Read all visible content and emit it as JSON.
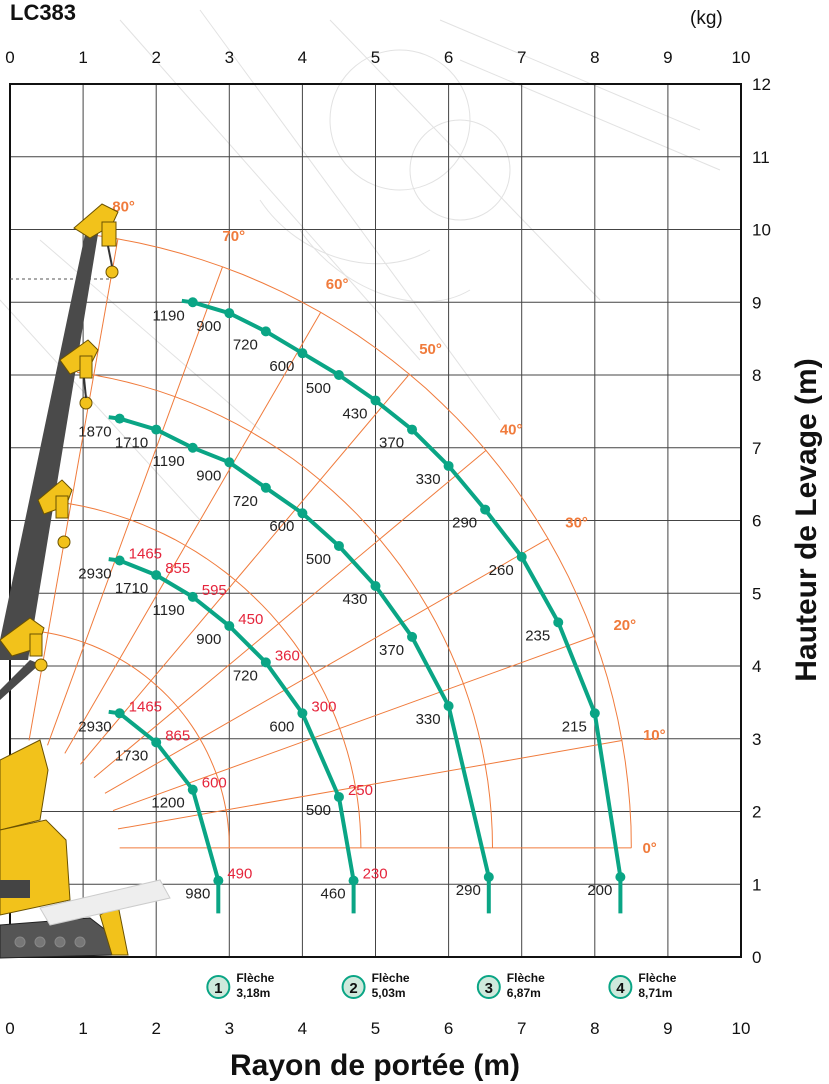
{
  "chart_data": {
    "type": "line",
    "title": "LC383",
    "top_unit": "(kg)",
    "xlabel": "Rayon de portée (m)",
    "ylabel": "Hauteur de Levage (m)",
    "xlim": [
      0,
      10
    ],
    "ylim": [
      0,
      12
    ],
    "x_ticks": [
      "0",
      "1",
      "2",
      "3",
      "4",
      "5",
      "6",
      "7",
      "8",
      "9",
      "10"
    ],
    "y_ticks": [
      "0",
      "1",
      "2",
      "3",
      "4",
      "5",
      "6",
      "7",
      "8",
      "9",
      "10",
      "11",
      "12"
    ],
    "top_ticks": [
      "0",
      "1",
      "2",
      "3",
      "4",
      "5",
      "6",
      "7",
      "8",
      "9",
      "10"
    ],
    "grid": true,
    "angle_labels": [
      "0°",
      "10°",
      "20°",
      "30°",
      "40°",
      "50°",
      "60°",
      "70°",
      "80°"
    ],
    "series": [
      {
        "name": "Flèche 3,18m",
        "boom_number": "1",
        "boom_word": "Flèche",
        "boom_length": "3,18m",
        "points": [
          {
            "x": 1.5,
            "y": 3.35,
            "label": "2930",
            "label2": "1465"
          },
          {
            "x": 2.0,
            "y": 2.95,
            "label": "1730",
            "label2": "865"
          },
          {
            "x": 2.5,
            "y": 2.3,
            "label": "1200",
            "label2": "600"
          },
          {
            "x": 2.85,
            "y": 1.05,
            "label": "980",
            "label2": "490"
          }
        ]
      },
      {
        "name": "Flèche 5,03m",
        "boom_number": "2",
        "boom_word": "Flèche",
        "boom_length": "5,03m",
        "points": [
          {
            "x": 1.5,
            "y": 5.45,
            "label": "2930",
            "label2": "1465"
          },
          {
            "x": 2.0,
            "y": 5.25,
            "label": "1710",
            "label2": "855"
          },
          {
            "x": 2.5,
            "y": 4.95,
            "label": "1190",
            "label2": "595"
          },
          {
            "x": 3.0,
            "y": 4.55,
            "label": "900",
            "label2": "450"
          },
          {
            "x": 3.5,
            "y": 4.05,
            "label": "720",
            "label2": "360"
          },
          {
            "x": 4.0,
            "y": 3.35,
            "label": "600",
            "label2": "300"
          },
          {
            "x": 4.5,
            "y": 2.2,
            "label": "500",
            "label2": "250"
          },
          {
            "x": 4.7,
            "y": 1.05,
            "label": "460",
            "label2": "230"
          }
        ]
      },
      {
        "name": "Flèche 6,87m",
        "boom_number": "3",
        "boom_word": "Flèche",
        "boom_length": "6,87m",
        "points": [
          {
            "x": 1.5,
            "y": 7.4,
            "label": "1870"
          },
          {
            "x": 2.0,
            "y": 7.25,
            "label": "1710"
          },
          {
            "x": 2.5,
            "y": 7.0,
            "label": "1190"
          },
          {
            "x": 3.0,
            "y": 6.8,
            "label": "900"
          },
          {
            "x": 3.5,
            "y": 6.45,
            "label": "720"
          },
          {
            "x": 4.0,
            "y": 6.1,
            "label": "600"
          },
          {
            "x": 4.5,
            "y": 5.65,
            "label": "500"
          },
          {
            "x": 5.0,
            "y": 5.1,
            "label": "430"
          },
          {
            "x": 5.5,
            "y": 4.4,
            "label": "370"
          },
          {
            "x": 6.0,
            "y": 3.45,
            "label": "330"
          },
          {
            "x": 6.55,
            "y": 1.1,
            "label": "290"
          }
        ]
      },
      {
        "name": "Flèche 8,71m",
        "boom_number": "4",
        "boom_word": "Flèche",
        "boom_length": "8,71m",
        "points": [
          {
            "x": 2.5,
            "y": 9.0,
            "label": "1190"
          },
          {
            "x": 3.0,
            "y": 8.85,
            "label": "900"
          },
          {
            "x": 3.5,
            "y": 8.6,
            "label": "720"
          },
          {
            "x": 4.0,
            "y": 8.3,
            "label": "600"
          },
          {
            "x": 4.5,
            "y": 8.0,
            "label": "500"
          },
          {
            "x": 5.0,
            "y": 7.65,
            "label": "430"
          },
          {
            "x": 5.5,
            "y": 7.25,
            "label": "370"
          },
          {
            "x": 6.0,
            "y": 6.75,
            "label": "330"
          },
          {
            "x": 6.5,
            "y": 6.15,
            "label": "290"
          },
          {
            "x": 7.0,
            "y": 5.5,
            "label": "260"
          },
          {
            "x": 7.5,
            "y": 4.6,
            "label": "235"
          },
          {
            "x": 8.0,
            "y": 3.35,
            "label": "215"
          },
          {
            "x": 8.35,
            "y": 1.1,
            "label": "200"
          }
        ]
      }
    ],
    "colors": {
      "curve": "#0aa585",
      "arc": "#f07b3c",
      "red_label": "#e5243b",
      "crane": "#f2c21b",
      "boom": "#4a4a4a"
    }
  }
}
